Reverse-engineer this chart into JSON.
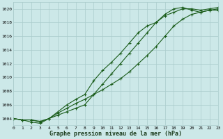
{
  "title": "Graphe pression niveau de la mer (hPa)",
  "bg_color": "#cce8e8",
  "grid_color": "#aacccc",
  "line_color": "#1a5c1a",
  "xlim": [
    0,
    23
  ],
  "ylim": [
    1003,
    1021
  ],
  "yticks": [
    1004,
    1006,
    1008,
    1010,
    1012,
    1014,
    1016,
    1018,
    1020
  ],
  "xticks": [
    0,
    1,
    2,
    3,
    4,
    5,
    6,
    7,
    8,
    9,
    10,
    11,
    12,
    13,
    14,
    15,
    16,
    17,
    18,
    19,
    20,
    21,
    22,
    23
  ],
  "series": [
    [
      1004.0,
      1003.8,
      1003.8,
      1003.6,
      1004.0,
      1004.8,
      1005.5,
      1006.2,
      1006.8,
      1007.5,
      1008.2,
      1009.0,
      1009.8,
      1010.8,
      1012.0,
      1013.2,
      1014.5,
      1016.0,
      1017.5,
      1018.5,
      1019.2,
      1019.5,
      1019.8,
      1019.8
    ],
    [
      1004.0,
      1003.8,
      1003.8,
      1003.5,
      1004.0,
      1005.0,
      1006.0,
      1006.8,
      1007.5,
      1009.5,
      1011.0,
      1012.2,
      1013.5,
      1015.0,
      1016.5,
      1017.5,
      1018.0,
      1019.2,
      1020.0,
      1020.2,
      1019.8,
      1019.5,
      1019.8,
      1020.0
    ],
    [
      1004.0,
      1003.8,
      1003.5,
      1003.3,
      1004.0,
      1004.5,
      1005.0,
      1005.5,
      1006.0,
      1007.5,
      1009.0,
      1010.5,
      1012.0,
      1013.5,
      1015.0,
      1016.5,
      1018.0,
      1019.0,
      1019.5,
      1020.0,
      1020.0,
      1019.8,
      1020.0,
      1020.2
    ]
  ]
}
